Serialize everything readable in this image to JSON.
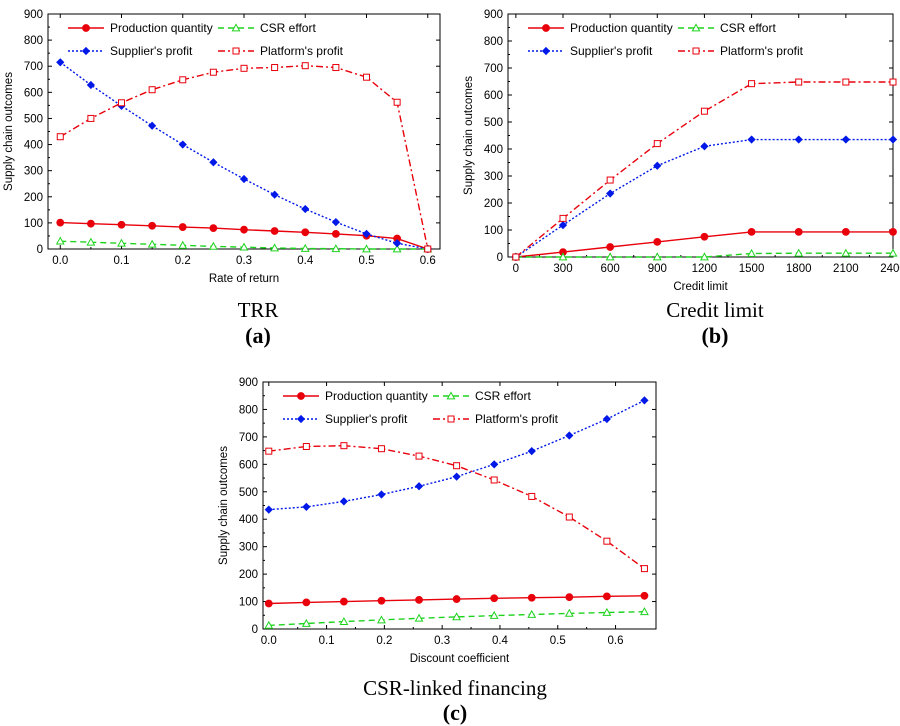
{
  "colors": {
    "production": "#e8000b",
    "csr": "#1ed31e",
    "supplier": "#0018e8",
    "platform": "#e8000b"
  },
  "chart_data": [
    {
      "id": "a",
      "type": "line",
      "caption": "TRR",
      "letter": "(a)",
      "xlabel": "Rate of return",
      "ylabel": "Supply chain outcomes",
      "xlim": [
        -0.02,
        0.62
      ],
      "ylim": [
        0,
        900
      ],
      "xticks": [
        0.0,
        0.1,
        0.2,
        0.3,
        0.4,
        0.5,
        0.6
      ],
      "xtick_labels": [
        "0.0",
        "0.1",
        "0.2",
        "0.3",
        "0.4",
        "0.5",
        "0.6"
      ],
      "yticks": [
        0,
        100,
        200,
        300,
        400,
        500,
        600,
        700,
        800,
        900
      ],
      "ytick_labels": [
        "0",
        "100",
        "200",
        "300",
        "400",
        "500",
        "600",
        "700",
        "800",
        "900"
      ],
      "x": [
        0.0,
        0.05,
        0.1,
        0.15,
        0.2,
        0.25,
        0.3,
        0.35,
        0.4,
        0.45,
        0.5,
        0.55,
        0.6
      ],
      "series": [
        {
          "key": "production",
          "name": "Production quantity",
          "values": [
            101,
            97,
            93,
            89,
            84,
            80,
            74,
            69,
            64,
            58,
            51,
            40,
            0
          ]
        },
        {
          "key": "csr",
          "name": "CSR effort",
          "values": [
            30,
            26,
            22,
            18,
            14,
            10,
            7,
            4,
            2,
            1,
            0,
            0,
            0
          ]
        },
        {
          "key": "supplier",
          "name": "Supplier's profit",
          "values": [
            715,
            628,
            548,
            472,
            400,
            332,
            268,
            208,
            153,
            103,
            58,
            22,
            0
          ]
        },
        {
          "key": "platform",
          "name": "Platform's profit",
          "values": [
            430,
            500,
            560,
            610,
            648,
            677,
            692,
            695,
            702,
            695,
            658,
            562,
            0
          ]
        }
      ]
    },
    {
      "id": "b",
      "type": "line",
      "caption": "Credit limit",
      "letter": "(b)",
      "xlabel": "Credit limit",
      "ylabel": "Supply chain outcomes",
      "xlim": [
        -50,
        2400
      ],
      "ylim": [
        0,
        900
      ],
      "xticks": [
        0,
        300,
        600,
        900,
        1200,
        1500,
        1800,
        2100,
        2400
      ],
      "xtick_labels": [
        "0",
        "300",
        "600",
        "900",
        "1200",
        "1500",
        "1800",
        "2100",
        "2400"
      ],
      "yticks": [
        0,
        100,
        200,
        300,
        400,
        500,
        600,
        700,
        800,
        900
      ],
      "ytick_labels": [
        "0",
        "100",
        "200",
        "300",
        "400",
        "500",
        "600",
        "700",
        "800",
        "900"
      ],
      "x": [
        0,
        300,
        600,
        900,
        1200,
        1500,
        1800,
        2100,
        2400
      ],
      "series": [
        {
          "key": "production",
          "name": "Production quantity",
          "values": [
            0,
            18,
            37,
            56,
            75,
            93,
            93,
            93,
            93
          ]
        },
        {
          "key": "csr",
          "name": "CSR effort",
          "values": [
            0,
            0,
            0,
            0,
            0,
            13,
            14,
            14,
            14
          ]
        },
        {
          "key": "supplier",
          "name": "Supplier's profit",
          "values": [
            0,
            118,
            235,
            338,
            410,
            435,
            435,
            435,
            435
          ]
        },
        {
          "key": "platform",
          "name": "Platform's profit",
          "values": [
            0,
            143,
            285,
            420,
            540,
            642,
            648,
            648,
            648
          ]
        }
      ]
    },
    {
      "id": "c",
      "type": "line",
      "caption": "CSR-linked financing",
      "letter": "(c)",
      "xlabel": "Discount coefficient",
      "ylabel": "Supply chain outcomes",
      "xlim": [
        -0.01,
        0.67
      ],
      "ylim": [
        0,
        900
      ],
      "xticks": [
        0.0,
        0.1,
        0.2,
        0.3,
        0.4,
        0.5,
        0.6
      ],
      "xtick_labels": [
        "0.0",
        "0.1",
        "0.2",
        "0.3",
        "0.4",
        "0.5",
        "0.6"
      ],
      "yticks": [
        0,
        100,
        200,
        300,
        400,
        500,
        600,
        700,
        800,
        900
      ],
      "ytick_labels": [
        "0",
        "100",
        "200",
        "300",
        "400",
        "500",
        "600",
        "700",
        "800",
        "900"
      ],
      "x": [
        0.0,
        0.065,
        0.13,
        0.195,
        0.26,
        0.325,
        0.39,
        0.455,
        0.52,
        0.585,
        0.65
      ],
      "series": [
        {
          "key": "production",
          "name": "Production quantity",
          "values": [
            93,
            97,
            100,
            103,
            106,
            109,
            112,
            114,
            116,
            119,
            121
          ]
        },
        {
          "key": "csr",
          "name": "CSR effort",
          "values": [
            13,
            20,
            27,
            33,
            39,
            44,
            49,
            53,
            57,
            60,
            63
          ]
        },
        {
          "key": "supplier",
          "name": "Supplier's profit",
          "values": [
            435,
            445,
            465,
            490,
            520,
            555,
            600,
            648,
            705,
            765,
            833
          ]
        },
        {
          "key": "platform",
          "name": "Platform's profit",
          "values": [
            648,
            665,
            668,
            657,
            630,
            595,
            543,
            483,
            408,
            320,
            220
          ]
        }
      ]
    }
  ]
}
